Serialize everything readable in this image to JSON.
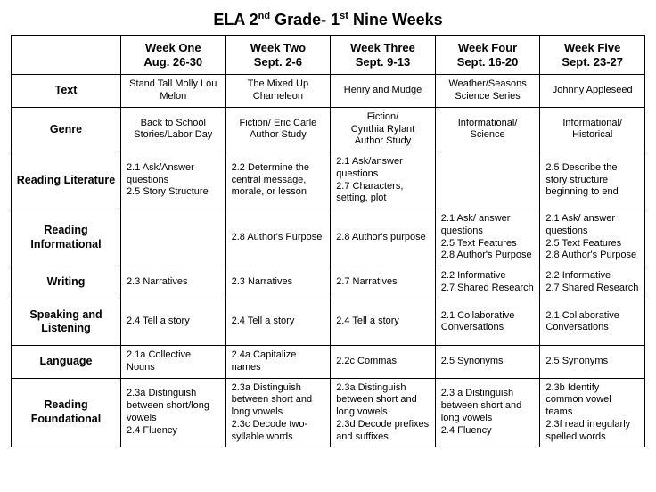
{
  "title_parts": {
    "a": "ELA  2",
    "b": "nd",
    "c": " Grade- 1",
    "d": "st",
    "e": " Nine Weeks"
  },
  "columns": [
    {
      "name": "Week One",
      "dates": "Aug. 26-30"
    },
    {
      "name": "Week Two",
      "dates": "Sept. 2-6"
    },
    {
      "name": "Week Three",
      "dates": "Sept. 9-13"
    },
    {
      "name": "Week Four",
      "dates": "Sept. 16-20"
    },
    {
      "name": "Week Five",
      "dates": "Sept. 23-27"
    }
  ],
  "rows": [
    {
      "label": "Text",
      "center": true,
      "cells": [
        "Stand Tall Molly Lou Melon",
        "The Mixed Up Chameleon",
        "Henry and Mudge",
        "Weather/Seasons Science Series",
        "Johnny Appleseed"
      ]
    },
    {
      "label": "Genre",
      "center": true,
      "cells": [
        "Back to School Stories/Labor Day",
        "Fiction/ Eric Carle Author Study",
        "Fiction/\nCynthia Rylant Author Study",
        "Informational/ Science",
        "Informational/ Historical"
      ]
    },
    {
      "label": "Reading Literature",
      "center": false,
      "cells": [
        "2.1 Ask/Answer questions\n2.5 Story Structure",
        "2.2 Determine the central message, morale, or lesson",
        "2.1 Ask/answer questions\n2.7 Characters, setting, plot",
        "",
        "2.5 Describe the story structure beginning to end"
      ]
    },
    {
      "label": "Reading Informational",
      "center": false,
      "cells": [
        "",
        "2.8 Author's Purpose",
        "2.8 Author's purpose",
        "2.1 Ask/ answer questions\n2.5 Text Features\n2.8 Author's Purpose",
        "2.1 Ask/ answer questions\n2.5 Text Features\n2.8 Author's Purpose"
      ]
    },
    {
      "label": "Writing",
      "center": false,
      "cells": [
        "2.3 Narratives",
        "2.3 Narratives",
        "2.7 Narratives",
        "2.2 Informative\n2.7 Shared Research",
        "2.2 Informative\n2.7 Shared Research"
      ]
    },
    {
      "label": "Speaking and Listening",
      "center": false,
      "cells": [
        "2.4 Tell a story",
        "2.4 Tell a story",
        "2.4 Tell a story",
        "2.1 Collaborative Conversations",
        "2.1 Collaborative Conversations"
      ]
    },
    {
      "label": "Language",
      "center": false,
      "cells": [
        "2.1a Collective Nouns",
        "2.4a Capitalize names",
        "2.2c Commas",
        "2.5 Synonyms",
        "2.5 Synonyms"
      ]
    },
    {
      "label": "Reading Foundational",
      "center": false,
      "cells": [
        "2.3a Distinguish between short/long vowels\n2.4 Fluency",
        "2.3a Distinguish between short and long vowels\n2.3c Decode two-syllable words",
        "2.3a Distinguish between short and long vowels\n2.3d Decode prefixes and suffixes",
        "2.3 a Distinguish between short and long vowels\n2.4 Fluency",
        "2.3b Identify common vowel teams\n2.3f read irregularly spelled words"
      ]
    }
  ]
}
